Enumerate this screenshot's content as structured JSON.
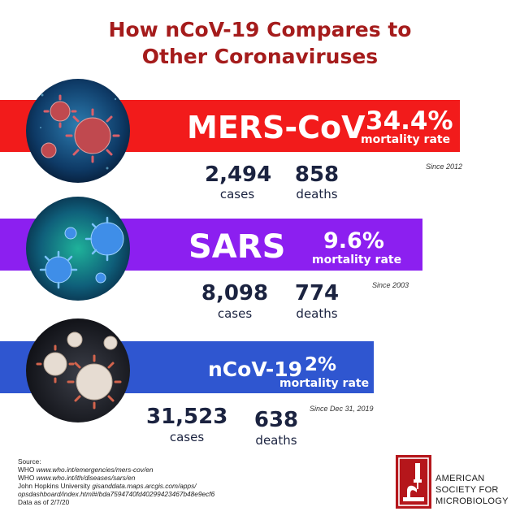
{
  "title": {
    "line1": "How nCoV-19 Compares to",
    "line2": "Other Coronaviruses"
  },
  "viruses": [
    {
      "name": "MERS-CoV",
      "rate": "34.4%",
      "rate_label": "mortality rate",
      "since": "Since 2012",
      "cases": "2,494",
      "cases_label": "cases",
      "deaths": "858",
      "deaths_label": "deaths",
      "color": "#f21b1b"
    },
    {
      "name": "SARS",
      "rate": "9.6%",
      "rate_label": "mortality rate",
      "since": "Since 2003",
      "cases": "8,098",
      "cases_label": "cases",
      "deaths": "774",
      "deaths_label": "deaths",
      "color": "#8c1ff0"
    },
    {
      "name": "nCoV-19",
      "rate": "2%",
      "rate_label": "mortality rate",
      "since": "Since Dec 31, 2019",
      "cases": "31,523",
      "cases_label": "cases",
      "deaths": "638",
      "deaths_label": "deaths",
      "color": "#2f56d0"
    }
  ],
  "source": {
    "heading": "Source:",
    "line1_prefix": "WHO ",
    "line1_url": "www.who.int/emergencies/mers-cov/en",
    "line2_prefix": "WHO ",
    "line2_url": "www.who.int/ith/diseases/sars/en",
    "line3_prefix": "John Hopkins University ",
    "line3_url": "gisanddata.maps.arcgis.com/apps/",
    "line4_url": "opsdashboard/index.html#/bda7594740fd40299423467b48e9ecf6",
    "line5": "Data as of 2/7/20"
  },
  "logo": {
    "line1": "AMERICAN",
    "line2": "SOCIETY FOR",
    "line3": "MICROBIOLOGY",
    "icon": "microscope-icon",
    "color": "#b5161b"
  }
}
